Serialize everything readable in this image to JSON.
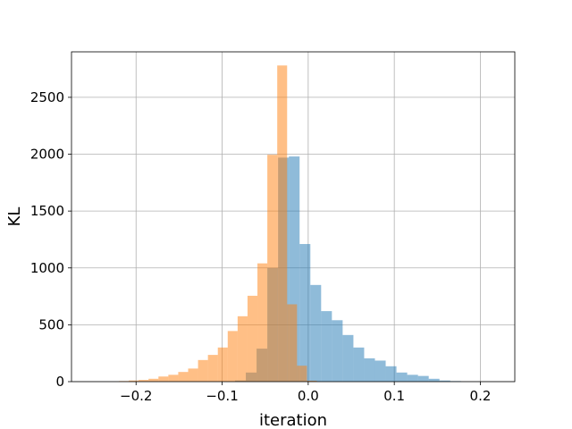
{
  "chart_data": {
    "type": "bar",
    "subtype": "overlapping-histogram",
    "xlabel": "iteration",
    "ylabel": "KL",
    "xlim": [
      -0.275,
      0.24
    ],
    "ylim": [
      0,
      2900
    ],
    "xticks": [
      -0.2,
      -0.1,
      0.0,
      0.1,
      0.2
    ],
    "xtick_labels": [
      "−0.2",
      "−0.1",
      "0.0",
      "0.1",
      "0.2"
    ],
    "yticks": [
      0,
      500,
      1000,
      1500,
      2000,
      2500
    ],
    "ytick_labels": [
      "0",
      "500",
      "1000",
      "1500",
      "2000",
      "2500"
    ],
    "grid": true,
    "bar_alpha": 0.5,
    "series": [
      {
        "color": "#1f77b4",
        "bin_width": 0.0125,
        "bins": [
          {
            "x0": -0.085,
            "count": 10
          },
          {
            "x0": -0.0725,
            "count": 80
          },
          {
            "x0": -0.06,
            "count": 290
          },
          {
            "x0": -0.0475,
            "count": 1000
          },
          {
            "x0": -0.035,
            "count": 1970
          },
          {
            "x0": -0.0225,
            "count": 1980
          },
          {
            "x0": -0.01,
            "count": 1210
          },
          {
            "x0": 0.0025,
            "count": 850
          },
          {
            "x0": 0.015,
            "count": 620
          },
          {
            "x0": 0.0275,
            "count": 540
          },
          {
            "x0": 0.04,
            "count": 410
          },
          {
            "x0": 0.0525,
            "count": 300
          },
          {
            "x0": 0.065,
            "count": 205
          },
          {
            "x0": 0.0775,
            "count": 185
          },
          {
            "x0": 0.09,
            "count": 135
          },
          {
            "x0": 0.1025,
            "count": 80
          },
          {
            "x0": 0.115,
            "count": 60
          },
          {
            "x0": 0.1275,
            "count": 50
          },
          {
            "x0": 0.14,
            "count": 25
          },
          {
            "x0": 0.1525,
            "count": 10
          },
          {
            "x0": 0.165,
            "count": 5
          }
        ]
      },
      {
        "color": "#ff7f0e",
        "bin_width": 0.0115,
        "bins": [
          {
            "x0": -0.22,
            "count": 5
          },
          {
            "x0": -0.2085,
            "count": 10
          },
          {
            "x0": -0.197,
            "count": 15
          },
          {
            "x0": -0.1855,
            "count": 25
          },
          {
            "x0": -0.174,
            "count": 45
          },
          {
            "x0": -0.1625,
            "count": 60
          },
          {
            "x0": -0.151,
            "count": 85
          },
          {
            "x0": -0.1395,
            "count": 115
          },
          {
            "x0": -0.128,
            "count": 190
          },
          {
            "x0": -0.1165,
            "count": 235
          },
          {
            "x0": -0.105,
            "count": 300
          },
          {
            "x0": -0.0935,
            "count": 445
          },
          {
            "x0": -0.082,
            "count": 575
          },
          {
            "x0": -0.0705,
            "count": 755
          },
          {
            "x0": -0.059,
            "count": 1040
          },
          {
            "x0": -0.0475,
            "count": 1995
          },
          {
            "x0": -0.036,
            "count": 2780
          },
          {
            "x0": -0.0245,
            "count": 680
          },
          {
            "x0": -0.013,
            "count": 140
          },
          {
            "x0": -0.0015,
            "count": 8
          }
        ]
      }
    ]
  }
}
